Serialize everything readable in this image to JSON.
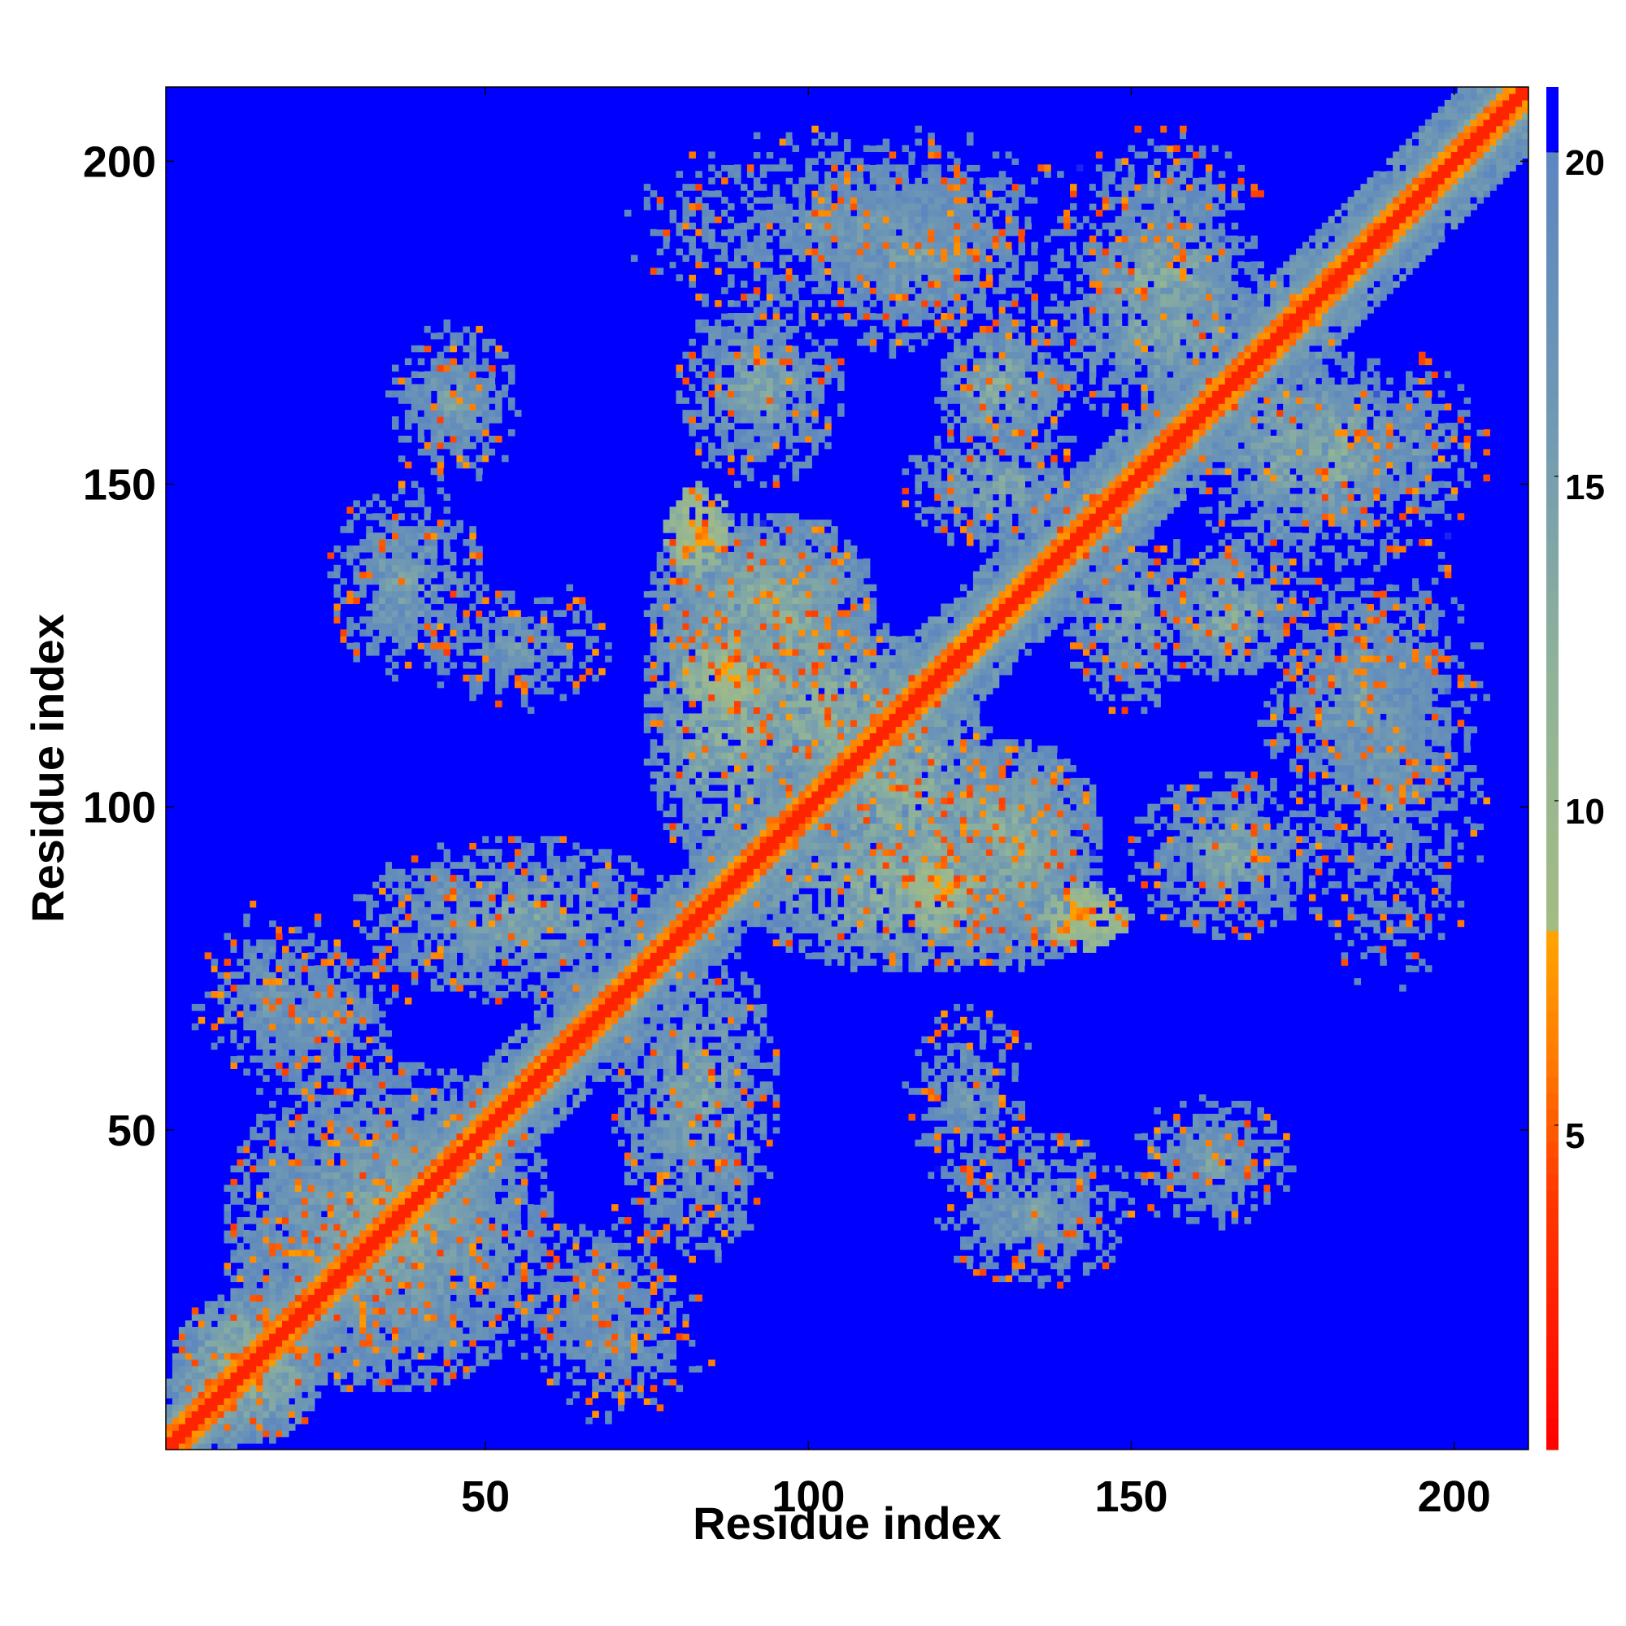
{
  "chart_data": {
    "type": "heatmap",
    "title": "",
    "xlabel": "Residue index",
    "ylabel": "Residue index",
    "x_range": [
      1,
      211
    ],
    "y_range": [
      1,
      211
    ],
    "x_ticks": [
      50,
      100,
      150,
      200
    ],
    "y_ticks": [
      50,
      100,
      150,
      200
    ],
    "x_tick_labels": [
      "50",
      "100",
      "150",
      "200"
    ],
    "y_tick_labels": [
      "50",
      "100",
      "150",
      "200"
    ],
    "colorbar": {
      "range": [
        0,
        21
      ],
      "ticks": [
        5,
        10,
        15,
        20
      ],
      "tick_labels": [
        "5",
        "10",
        "15",
        "20"
      ],
      "clip_max_color": "#0000ff",
      "stops": [
        {
          "value": 0,
          "color": "#ff0000"
        },
        {
          "value": 4,
          "color": "#ff3a00"
        },
        {
          "value": 6,
          "color": "#ff7a00"
        },
        {
          "value": 8,
          "color": "#ffa500"
        },
        {
          "value": 8.01,
          "color": "#a4bc82"
        },
        {
          "value": 12,
          "color": "#8fb29a"
        },
        {
          "value": 16,
          "color": "#6f98b4"
        },
        {
          "value": 20,
          "color": "#5c86c0"
        },
        {
          "value": 20.01,
          "color": "#0000ff"
        }
      ]
    },
    "symmetric": true,
    "diagonal_value": 2.5,
    "background_value": 21,
    "contact_regions": [
      {
        "i": [
          10,
          60
        ],
        "j": [
          10,
          60
        ],
        "value": 14
      },
      {
        "i": [
          2,
          25
        ],
        "j": [
          2,
          25
        ],
        "value": 12
      },
      {
        "i": [
          5,
          30
        ],
        "j": [
          55,
          85
        ],
        "value": 16
      },
      {
        "i": [
          30,
          80
        ],
        "j": [
          70,
          95
        ],
        "value": 14
      },
      {
        "i": [
          55,
          80
        ],
        "j": [
          15,
          38
        ],
        "value": 16
      },
      {
        "i": [
          75,
          100
        ],
        "j": [
          90,
          140
        ],
        "value": 12
      },
      {
        "i": [
          80,
          95
        ],
        "j": [
          115,
          125
        ],
        "value": 7
      },
      {
        "i": [
          85,
          120
        ],
        "j": [
          100,
          130
        ],
        "value": 12
      },
      {
        "i": [
          115,
          145
        ],
        "j": [
          85,
          110
        ],
        "value": 13
      },
      {
        "i": [
          135,
          150
        ],
        "j": [
          78,
          88
        ],
        "value": 7
      },
      {
        "i": [
          75,
          110
        ],
        "j": [
          120,
          145
        ],
        "value": 13
      },
      {
        "i": [
          80,
          105
        ],
        "j": [
          150,
          180
        ],
        "value": 14
      },
      {
        "i": [
          135,
          175
        ],
        "j": [
          160,
          190
        ],
        "value": 14
      },
      {
        "i": [
          120,
          150
        ],
        "j": [
          25,
          50
        ],
        "value": 15
      },
      {
        "i": [
          150,
          175
        ],
        "j": [
          35,
          55
        ],
        "value": 15
      },
      {
        "i": [
          115,
          135
        ],
        "j": [
          40,
          70
        ],
        "value": 16
      },
      {
        "i": [
          175,
          205
        ],
        "j": [
          70,
          145
        ],
        "value": 16
      },
      {
        "i": [
          100,
          135
        ],
        "j": [
          170,
          200
        ],
        "value": 15
      },
      {
        "i": [
          140,
          170
        ],
        "j": [
          180,
          205
        ],
        "value": 16
      },
      {
        "i": [
          155,
          175
        ],
        "j": [
          120,
          140
        ],
        "value": 13
      },
      {
        "i": [
          140,
          160
        ],
        "j": [
          115,
          145
        ],
        "value": 14
      },
      {
        "i": [
          175,
          190
        ],
        "j": [
          145,
          165
        ],
        "value": 12
      }
    ]
  }
}
